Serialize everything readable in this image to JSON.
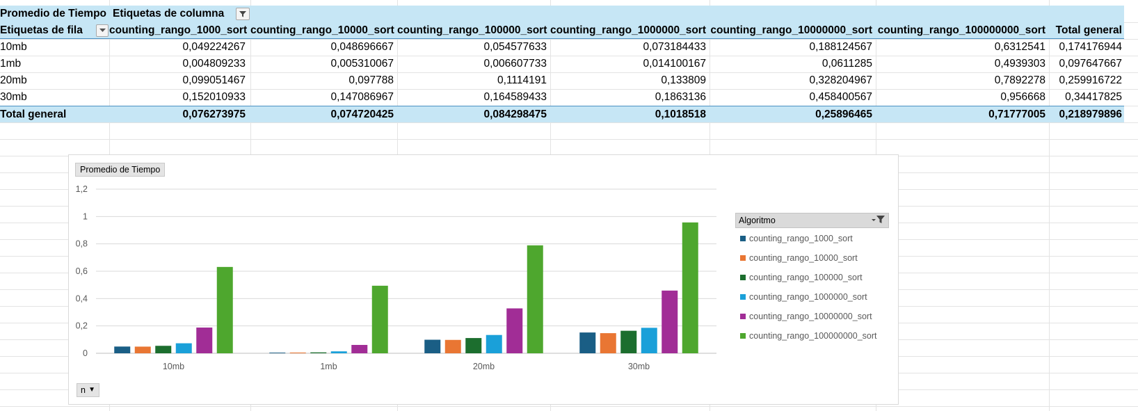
{
  "pivot": {
    "title_label": "Promedio de Tiempo",
    "col_label": "Etiquetas de columna",
    "row_label": "Etiquetas de fila",
    "columns": [
      "counting_rango_1000_sort",
      "counting_rango_10000_sort",
      "counting_rango_100000_sort",
      "counting_rango_1000000_sort",
      "counting_rango_10000000_sort",
      "counting_rango_100000000_sort",
      "Total general"
    ],
    "rows": [
      {
        "label": "10mb",
        "values": [
          "0,049224267",
          "0,048696667",
          "0,054577633",
          "0,073184433",
          "0,188124567",
          "0,6312541",
          "0,174176944"
        ]
      },
      {
        "label": "1mb",
        "values": [
          "0,004809233",
          "0,005310067",
          "0,006607733",
          "0,014100167",
          "0,0611285",
          "0,4939303",
          "0,097647667"
        ]
      },
      {
        "label": "20mb",
        "values": [
          "0,099051467",
          "0,097788",
          "0,1114191",
          "0,133809",
          "0,328204967",
          "0,7892278",
          "0,259916722"
        ]
      },
      {
        "label": "30mb",
        "values": [
          "0,152010933",
          "0,147086967",
          "0,164589433",
          "0,1863136",
          "0,458400567",
          "0,956668",
          "0,34417825"
        ]
      }
    ],
    "total_row": {
      "label": "Total general",
      "values": [
        "0,076273975",
        "0,074720425",
        "0,084298475",
        "0,1018518",
        "0,25896465",
        "0,71777005",
        "0,218979896"
      ]
    }
  },
  "chart": {
    "field_button": "Promedio de Tiempo",
    "legend_title": "Algoritmo",
    "axis_field_button": "n",
    "filter_icon": "filter-icon",
    "caret_icon": "caret-down-icon"
  },
  "chart_data": {
    "type": "bar",
    "categories": [
      "10mb",
      "1mb",
      "20mb",
      "30mb"
    ],
    "ylim": [
      0,
      1.2
    ],
    "yticks": [
      0,
      0.2,
      0.4,
      0.6,
      0.8,
      1,
      1.2
    ],
    "ytick_labels": [
      "0",
      "0,2",
      "0,4",
      "0,6",
      "0,8",
      "1",
      "1,2"
    ],
    "grid": true,
    "legend_position": "right",
    "series": [
      {
        "name": "counting_rango_1000_sort",
        "color": "#1a5e85",
        "values": [
          0.049224267,
          0.004809233,
          0.099051467,
          0.152010933
        ]
      },
      {
        "name": "counting_rango_10000_sort",
        "color": "#e97633",
        "values": [
          0.048696667,
          0.005310067,
          0.097788,
          0.147086967
        ]
      },
      {
        "name": "counting_rango_100000_sort",
        "color": "#1c6e2e",
        "values": [
          0.054577633,
          0.006607733,
          0.1114191,
          0.164589433
        ]
      },
      {
        "name": "counting_rango_1000000_sort",
        "color": "#1aa0d9",
        "values": [
          0.073184433,
          0.014100167,
          0.133809,
          0.1863136
        ]
      },
      {
        "name": "counting_rango_10000000_sort",
        "color": "#a12d96",
        "values": [
          0.188124567,
          0.0611285,
          0.328204967,
          0.458400567
        ]
      },
      {
        "name": "counting_rango_100000000_sort",
        "color": "#4ea72e",
        "values": [
          0.6312541,
          0.4939303,
          0.7892278,
          0.956668
        ]
      }
    ]
  }
}
